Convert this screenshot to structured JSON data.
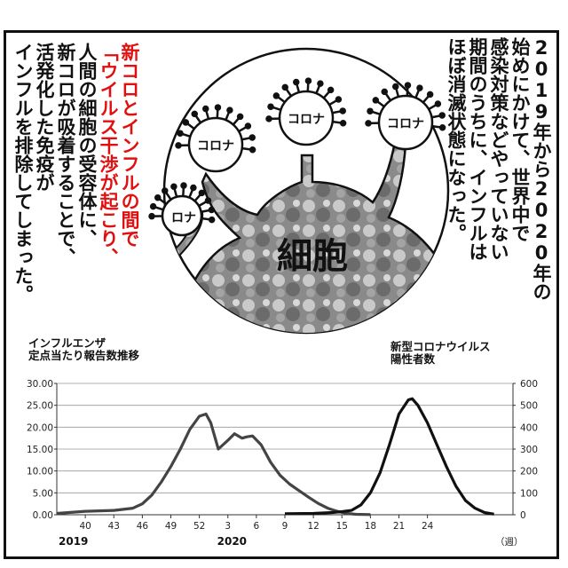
{
  "panel": {
    "right_text": [
      "2019年から2020年の",
      "始めにかけて、世界中で",
      "感染対策などやっていない",
      "期間のうちに、インフルは",
      "ほぼ消滅状態になった。"
    ],
    "left_red_text": [
      "新コロとインフルの間で",
      "「ウイルス干渉が起こり、"
    ],
    "left_text": [
      "人間の細胞の受容体に、",
      "新コロが吸着することで、",
      "活発化した免疫が",
      "インフルを排除してしまった。"
    ],
    "cell_label": "細胞",
    "virus_labels": [
      "コロナ",
      "コロナ",
      "コロナ",
      "ロナ"
    ]
  },
  "chart_titles": {
    "left": "インフルエンザ\n定点当たり報告数推移",
    "right": "新型コロナウイルス\n陽性者数"
  },
  "chart_data": {
    "type": "line",
    "x_tick_labels": [
      "40",
      "43",
      "46",
      "49",
      "52",
      "3",
      "6",
      "9",
      "12",
      "15",
      "18",
      "21",
      "24"
    ],
    "x_unit": "（週）",
    "year_labels": [
      "2019",
      "2020"
    ],
    "y_left": {
      "ticks": [
        "0.00",
        "5.00",
        "10.00",
        "15.00",
        "20.00",
        "25.00",
        "30.00"
      ],
      "ylim": [
        0,
        30
      ]
    },
    "y_right": {
      "ticks": [
        "0",
        "100",
        "200",
        "300",
        "400",
        "500",
        "600"
      ],
      "ylim": [
        0,
        600
      ]
    },
    "series": [
      {
        "axis": "left",
        "color": "#444444",
        "points": [
          [
            37,
            0.3
          ],
          [
            40,
            0.8
          ],
          [
            43,
            1.0
          ],
          [
            45,
            1.5
          ],
          [
            46,
            2.5
          ],
          [
            47,
            4.5
          ],
          [
            48,
            7.5
          ],
          [
            49,
            11
          ],
          [
            50,
            15
          ],
          [
            51,
            19.5
          ],
          [
            52,
            22.5
          ],
          [
            52.7,
            23
          ],
          [
            53.2,
            21
          ],
          [
            54,
            15
          ],
          [
            55,
            17
          ],
          [
            55.7,
            18.5
          ],
          [
            56.5,
            17.5
          ],
          [
            57,
            17.8
          ],
          [
            57.6,
            18
          ],
          [
            58.5,
            16
          ],
          [
            59.5,
            12
          ],
          [
            60.5,
            9
          ],
          [
            61.5,
            7
          ],
          [
            62.5,
            5.5
          ],
          [
            63.5,
            4
          ],
          [
            64.5,
            2.6
          ],
          [
            65.5,
            1.5
          ],
          [
            66.5,
            0.8
          ],
          [
            67.5,
            0.3
          ],
          [
            68.5,
            0.1
          ],
          [
            70,
            0.05
          ]
        ]
      },
      {
        "axis": "right",
        "color": "#111111",
        "points": [
          [
            61,
            5
          ],
          [
            64,
            6
          ],
          [
            66,
            10
          ],
          [
            67,
            14
          ],
          [
            68,
            20
          ],
          [
            69,
            45
          ],
          [
            70,
            100
          ],
          [
            71,
            190
          ],
          [
            72,
            320
          ],
          [
            73,
            460
          ],
          [
            74,
            525
          ],
          [
            74.4,
            530
          ],
          [
            75,
            500
          ],
          [
            76,
            420
          ],
          [
            77,
            320
          ],
          [
            78,
            220
          ],
          [
            79,
            130
          ],
          [
            80,
            65
          ],
          [
            81,
            30
          ],
          [
            82,
            10
          ],
          [
            83,
            3
          ]
        ]
      }
    ]
  }
}
